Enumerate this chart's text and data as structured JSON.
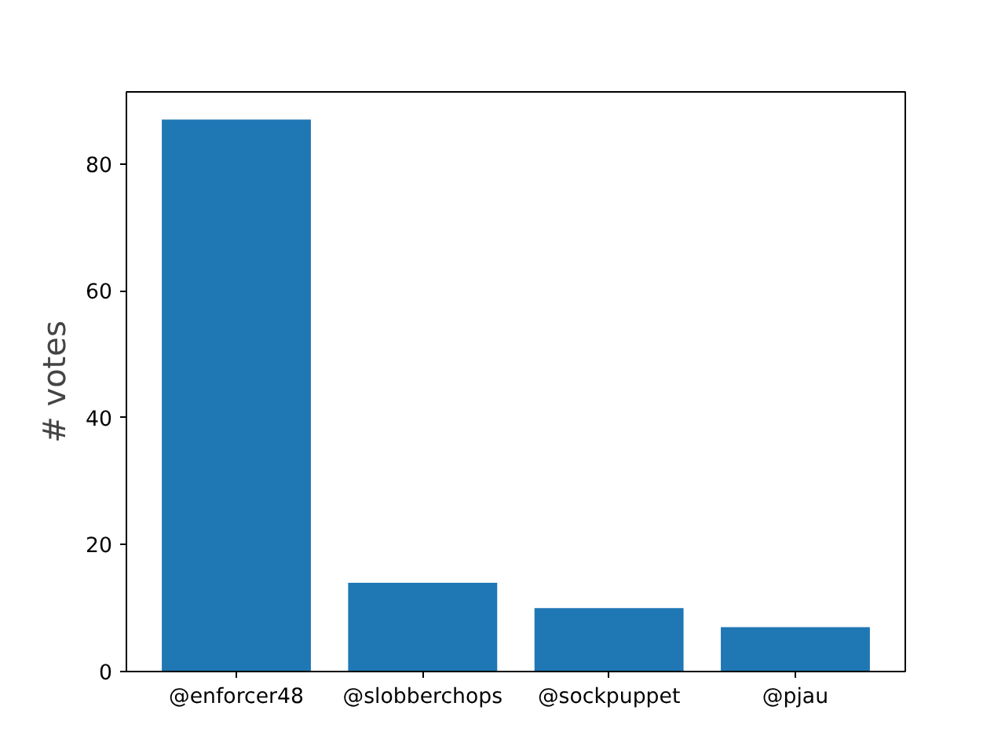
{
  "chart_data": {
    "type": "bar",
    "ylabel": "# votes",
    "categories": [
      "@enforcer48",
      "@slobberchops",
      "@sockpuppet",
      "@pjau"
    ],
    "values": [
      87,
      14,
      10,
      7
    ],
    "color": "#1f77b4",
    "ylim": [
      0,
      91.35
    ],
    "yticks": [
      0,
      20,
      40,
      60,
      80
    ],
    "grid": false
  }
}
